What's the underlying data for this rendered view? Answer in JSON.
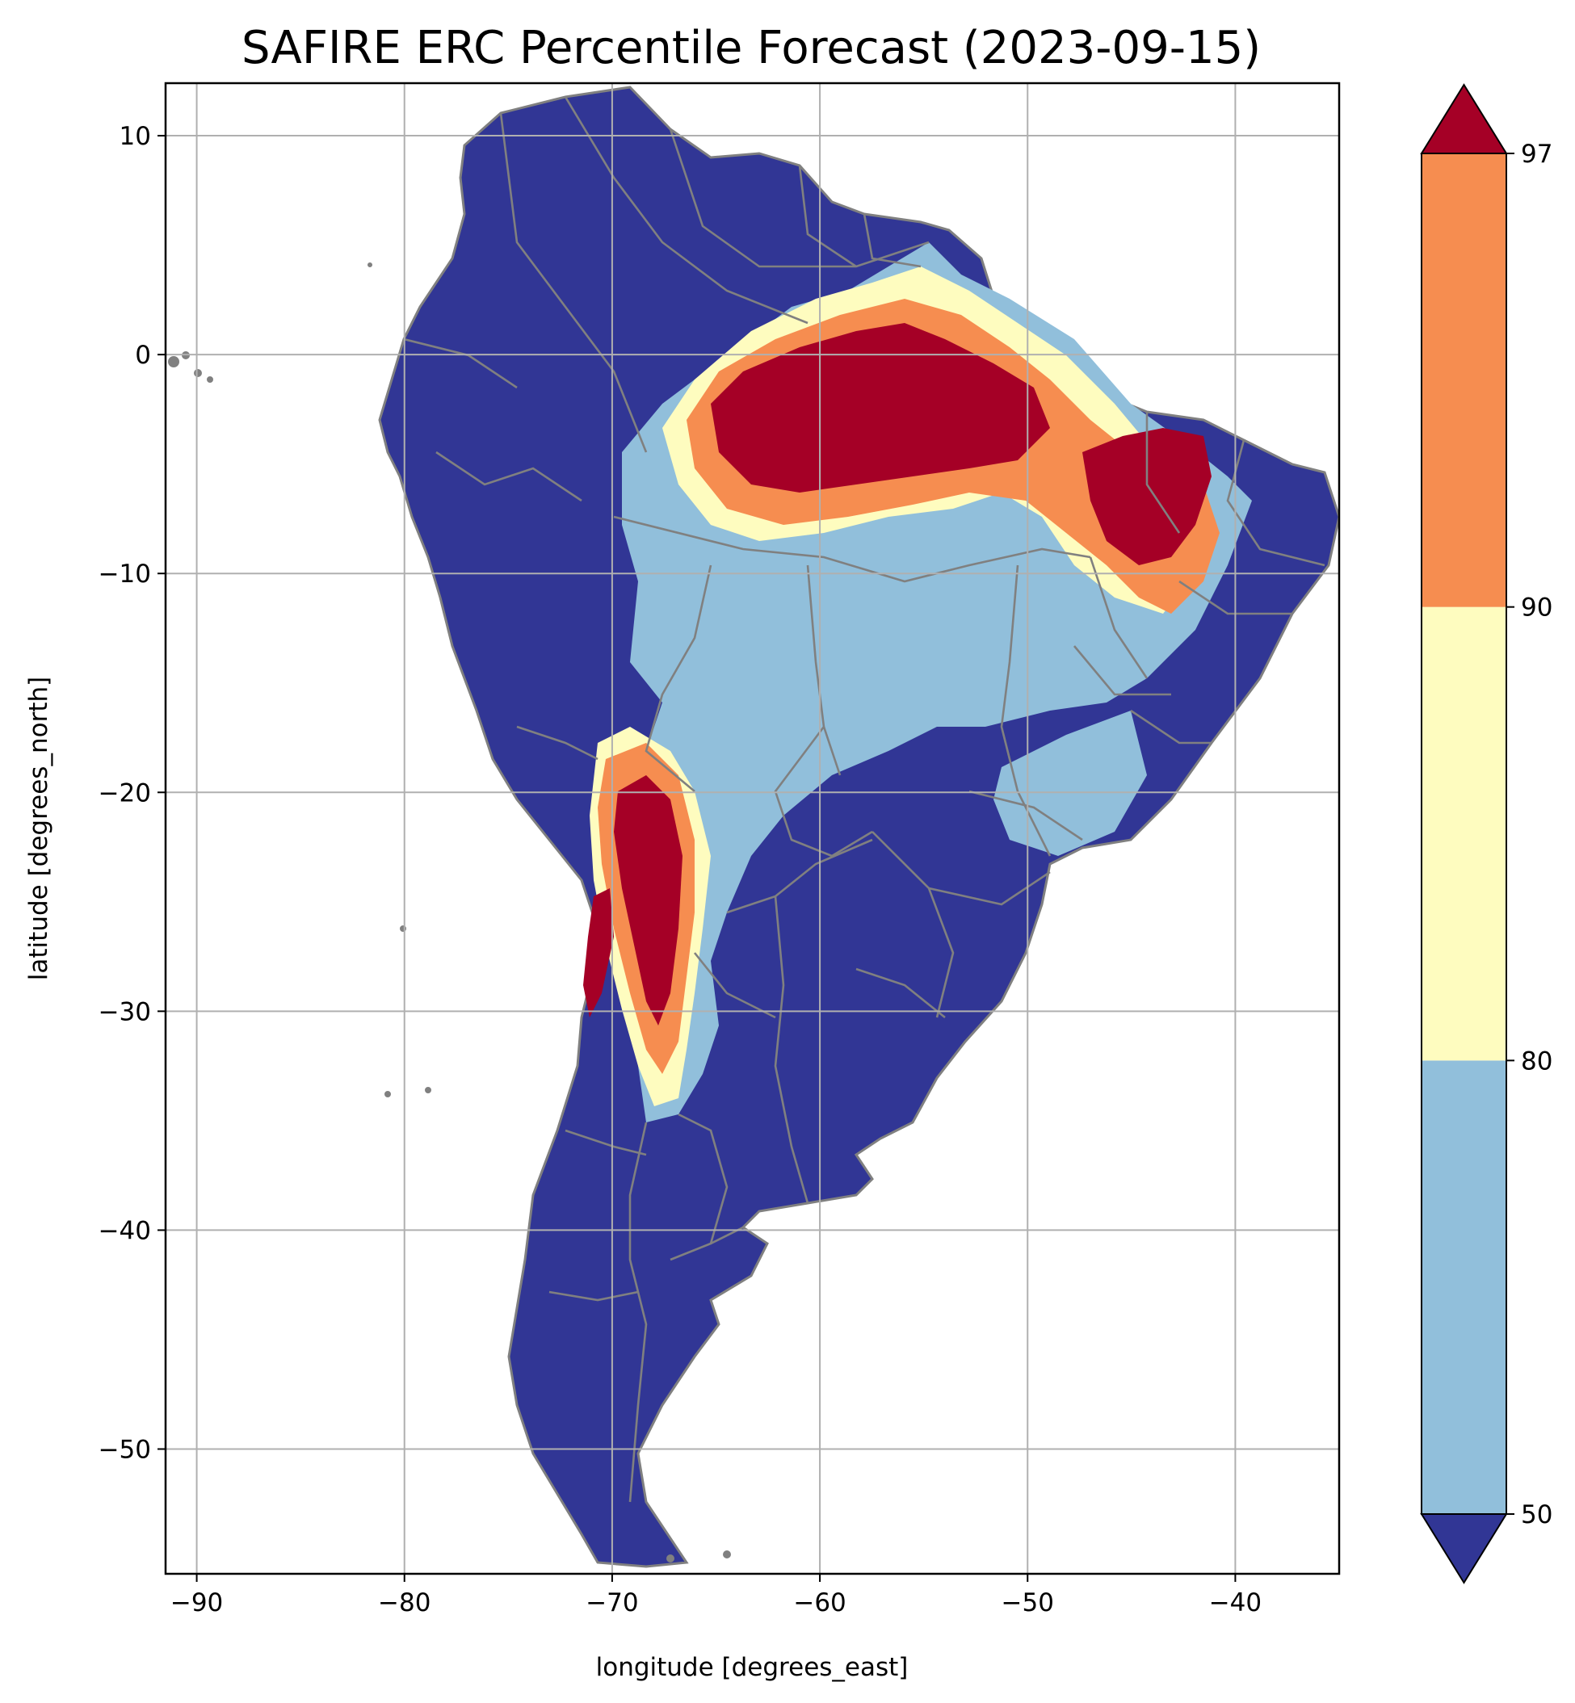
{
  "chart_data": {
    "type": "heatmap",
    "title": "SAFIRE ERC Percentile Forecast (2023-09-15)",
    "xlabel": "longitude [degrees_east]",
    "ylabel": "latitude [degrees_north]",
    "xlim": [
      -91.5,
      -35
    ],
    "ylim": [
      -55.7,
      12.4
    ],
    "x_ticks": [
      -90,
      -80,
      -70,
      -60,
      -50,
      -40
    ],
    "x_tick_labels": [
      "−90",
      "−80",
      "−70",
      "−60",
      "−50",
      "−40"
    ],
    "y_ticks": [
      10,
      0,
      -10,
      -20,
      -30,
      -40,
      -50
    ],
    "y_tick_labels": [
      "10",
      "0",
      "−10",
      "−20",
      "−30",
      "−40",
      "−50"
    ],
    "grid": true,
    "colorbar": {
      "placement": "right",
      "extend": "both",
      "boundaries": [
        50,
        80,
        90,
        97
      ],
      "tick_labels": [
        "50",
        "80",
        "90",
        "97"
      ],
      "colors": {
        "below_50": "#313695",
        "50_80": "#91bfdb",
        "80_90": "#fefcbf",
        "90_97": "#f68d50",
        "above_97": "#a50026"
      }
    },
    "colors": {
      "border": "#808080",
      "grid": "#b0b0b0"
    }
  }
}
